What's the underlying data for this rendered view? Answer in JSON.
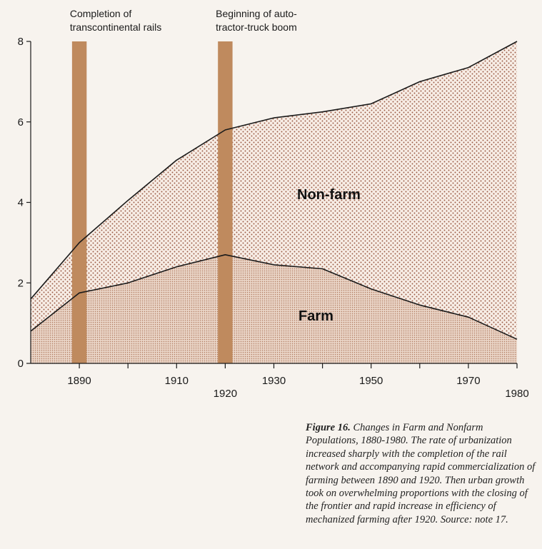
{
  "chart_data": {
    "type": "area",
    "x": [
      1880,
      1890,
      1900,
      1910,
      1920,
      1930,
      1940,
      1950,
      1960,
      1970,
      1980
    ],
    "series": [
      {
        "name": "Farm",
        "values": [
          0.8,
          1.75,
          2.0,
          2.4,
          2.7,
          2.45,
          2.35,
          1.85,
          1.45,
          1.15,
          0.6
        ]
      },
      {
        "name": "Non-farm",
        "values": [
          1.6,
          3.0,
          4.05,
          5.05,
          5.8,
          6.1,
          6.25,
          6.45,
          7.0,
          7.35,
          8.0
        ]
      }
    ],
    "xlim": [
      1880,
      1980
    ],
    "ylim": [
      0,
      8
    ],
    "y_ticks": [
      "0",
      "2",
      "4",
      "6",
      "8"
    ],
    "x_ticks_upper": [
      "1890",
      "1910",
      "1930",
      "1950",
      "1970"
    ],
    "x_ticks_lower": [
      "1920",
      "1980"
    ],
    "annotation_bars": [
      {
        "label_lines": [
          "Completion of",
          "transcontinental rails"
        ],
        "x_start": 1888.5,
        "x_end": 1891.5
      },
      {
        "label_lines": [
          "Beginning of auto-",
          "tractor-truck boom"
        ],
        "x_start": 1918.5,
        "x_end": 1921.5
      }
    ],
    "area_labels": [
      "Non-farm",
      "Farm"
    ],
    "xlabel": "",
    "ylabel": "",
    "grid": false,
    "colors": {
      "background": "#f7f3ee",
      "farm_fill": "#e9d3c5",
      "farm_dot": "#b07a60",
      "nonfarm_fill": "#f7ede5",
      "nonfarm_dot": "#9a5a44",
      "annotation_bar": "#bf8a5e",
      "line": "#1a1a1a"
    }
  },
  "caption": {
    "figure_label": "Figure 16.",
    "text": "Changes in Farm and Nonfarm Populations, 1880-1980. The rate of urbanization increased sharply with the completion of the rail network and accompanying rapid commercialization of farming between 1890 and 1920. Then urban growth took on overwhelming proportions with the closing of the frontier and rapid increase in efficiency of mechanized farming after 1920. Source: note 17."
  }
}
